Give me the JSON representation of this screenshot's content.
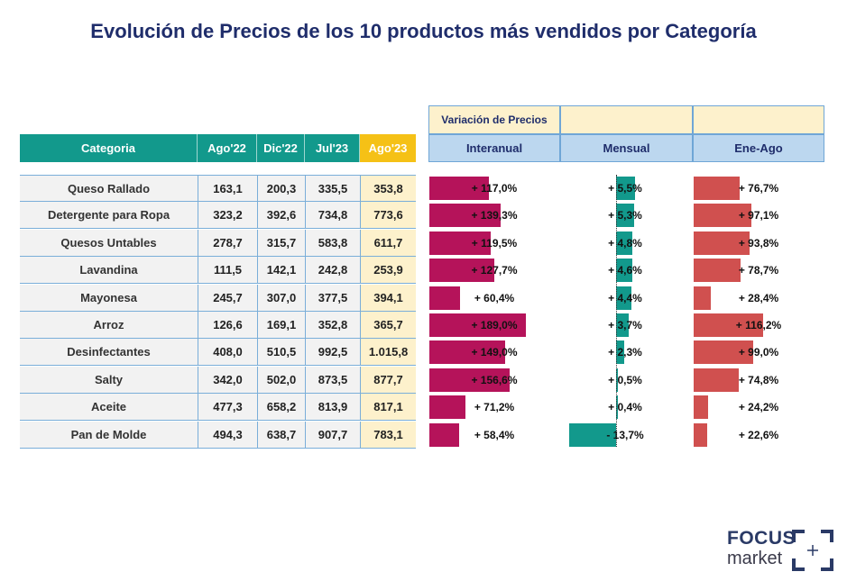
{
  "title": "Evolución de Precios de los 10 productos más vendidos por Categoría",
  "table": {
    "headers": [
      "Categoria",
      "Ago'22",
      "Dic'22",
      "Jul'23",
      "Ago'23"
    ],
    "rows": [
      {
        "category": "Queso Rallado",
        "v": [
          "163,1",
          "200,3",
          "335,5",
          "353,8"
        ]
      },
      {
        "category": "Detergente para Ropa",
        "v": [
          "323,2",
          "392,6",
          "734,8",
          "773,6"
        ]
      },
      {
        "category": "Quesos Untables",
        "v": [
          "278,7",
          "315,7",
          "583,8",
          "611,7"
        ]
      },
      {
        "category": "Lavandina",
        "v": [
          "111,5",
          "142,1",
          "242,8",
          "253,9"
        ]
      },
      {
        "category": "Mayonesa",
        "v": [
          "245,7",
          "307,0",
          "377,5",
          "394,1"
        ]
      },
      {
        "category": "Arroz",
        "v": [
          "126,6",
          "169,1",
          "352,8",
          "365,7"
        ]
      },
      {
        "category": "Desinfectantes",
        "v": [
          "408,0",
          "510,5",
          "992,5",
          "1.015,8"
        ]
      },
      {
        "category": "Salty",
        "v": [
          "342,0",
          "502,0",
          "873,5",
          "877,7"
        ]
      },
      {
        "category": "Aceite",
        "v": [
          "477,3",
          "658,2",
          "813,9",
          "817,1"
        ]
      },
      {
        "category": "Pan de Molde",
        "v": [
          "494,3",
          "638,7",
          "907,7",
          "783,1"
        ]
      }
    ]
  },
  "variation_header": "Variación de Precios",
  "chart_data": {
    "type": "bar",
    "categories": [
      "Queso Rallado",
      "Detergente para Ropa",
      "Quesos Untables",
      "Lavandina",
      "Mayonesa",
      "Arroz",
      "Desinfectantes",
      "Salty",
      "Aceite",
      "Pan de Molde"
    ],
    "series": [
      {
        "name": "Interanual",
        "values": [
          117.0,
          139.3,
          119.5,
          127.7,
          60.4,
          189.0,
          149.0,
          156.6,
          71.2,
          58.4
        ],
        "labels": [
          "+ 117,0%",
          "+ 139,3%",
          "+ 119,5%",
          "+ 127,7%",
          "+ 60,4%",
          "+ 189,0%",
          "+ 149,0%",
          "+ 156,6%",
          "+ 71,2%",
          "+ 58,4%"
        ],
        "color": "#b5135a"
      },
      {
        "name": "Mensual",
        "values": [
          5.5,
          5.3,
          4.8,
          4.6,
          4.4,
          3.7,
          2.3,
          0.5,
          0.4,
          -13.7
        ],
        "labels": [
          "+ 5,5%",
          "+ 5,3%",
          "+ 4,8%",
          "+ 4,6%",
          "+ 4,4%",
          "+ 3,7%",
          "+ 2,3%",
          "+ 0,5%",
          "+ 0,4%",
          "- 13,7%"
        ],
        "color": "#12998c"
      },
      {
        "name": "Ene-Ago",
        "values": [
          76.7,
          97.1,
          93.8,
          78.7,
          28.4,
          116.2,
          99.0,
          74.8,
          24.2,
          22.6
        ],
        "labels": [
          "+ 76,7%",
          "+ 97,1%",
          "+ 93,8%",
          "+ 78,7%",
          "+ 28,4%",
          "+ 116,2%",
          "+ 99,0%",
          "+ 74,8%",
          "+ 24,2%",
          "+ 22,6%"
        ],
        "color": "#d0504f"
      }
    ]
  },
  "logo": {
    "line1": "FOCUS",
    "line2": "market"
  }
}
